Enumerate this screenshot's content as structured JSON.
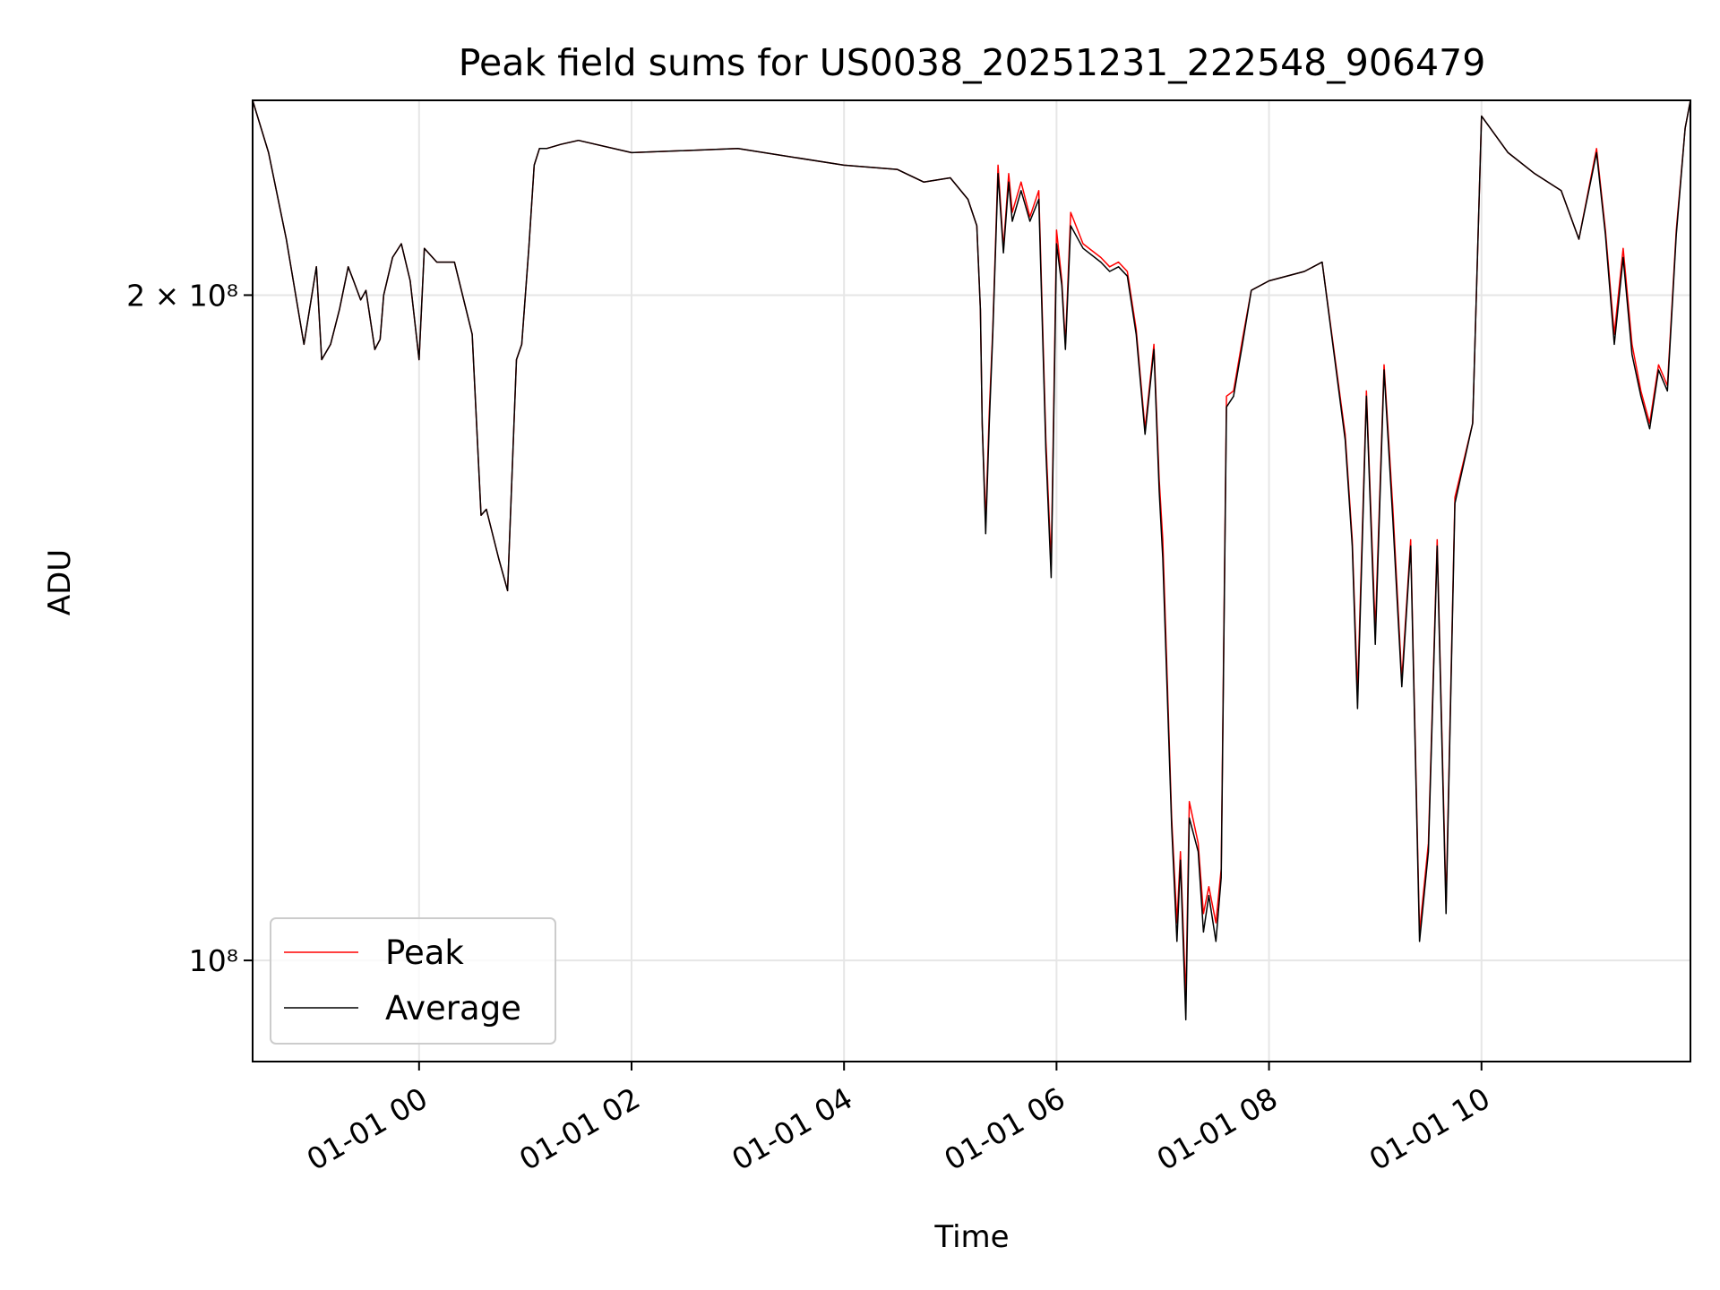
{
  "chart_data": {
    "type": "line",
    "title": "Peak field sums for US0038_20251231_222548_906479",
    "xlabel": "Time",
    "ylabel": "ADU",
    "yscale": "log",
    "x_range": [
      "2025-12-31T22:26:00",
      "2026-01-01T11:58:00"
    ],
    "ylim": [
      90000000,
      245000000
    ],
    "x_ticks": [
      {
        "value": "2026-01-01T00:00",
        "label": "01-01 00"
      },
      {
        "value": "2026-01-01T02:00",
        "label": "01-01 02"
      },
      {
        "value": "2026-01-01T04:00",
        "label": "01-01 04"
      },
      {
        "value": "2026-01-01T06:00",
        "label": "01-01 06"
      },
      {
        "value": "2026-01-01T08:00",
        "label": "01-01 08"
      },
      {
        "value": "2026-01-01T10:00",
        "label": "01-01 10"
      }
    ],
    "y_ticks": [
      {
        "value": 200000000,
        "label": "2 × 10⁸"
      },
      {
        "value": 100000000,
        "label": "10⁸"
      }
    ],
    "grid": true,
    "legend_position": "lower-left",
    "series": [
      {
        "name": "Peak",
        "color": "#ff0000",
        "x": [
          "2025-12-31T22:26",
          "2025-12-31T22:35",
          "2025-12-31T22:45",
          "2025-12-31T22:55",
          "2025-12-31T23:02",
          "2025-12-31T23:05",
          "2025-12-31T23:10",
          "2025-12-31T23:15",
          "2025-12-31T23:20",
          "2025-12-31T23:23",
          "2025-12-31T23:27",
          "2025-12-31T23:30",
          "2025-12-31T23:35",
          "2025-12-31T23:38",
          "2025-12-31T23:40",
          "2025-12-31T23:45",
          "2025-12-31T23:50",
          "2025-12-31T23:55",
          "2026-01-01T00:00",
          "2026-01-01T00:03",
          "2026-01-01T00:10",
          "2026-01-01T00:20",
          "2026-01-01T00:30",
          "2026-01-01T00:35",
          "2026-01-01T00:38",
          "2026-01-01T00:45",
          "2026-01-01T00:50",
          "2026-01-01T00:55",
          "2026-01-01T00:58",
          "2026-01-01T01:02",
          "2026-01-01T01:05",
          "2026-01-01T01:08",
          "2026-01-01T01:12",
          "2026-01-01T01:20",
          "2026-01-01T01:30",
          "2026-01-01T02:00",
          "2026-01-01T03:00",
          "2026-01-01T04:00",
          "2026-01-01T04:30",
          "2026-01-01T04:45",
          "2026-01-01T05:00",
          "2026-01-01T05:10",
          "2026-01-01T05:15",
          "2026-01-01T05:17",
          "2026-01-01T05:18",
          "2026-01-01T05:20",
          "2026-01-01T05:22",
          "2026-01-01T05:24",
          "2026-01-01T05:27",
          "2026-01-01T05:30",
          "2026-01-01T05:33",
          "2026-01-01T05:35",
          "2026-01-01T05:40",
          "2026-01-01T05:45",
          "2026-01-01T05:50",
          "2026-01-01T05:54",
          "2026-01-01T05:57",
          "2026-01-01T06:00",
          "2026-01-01T06:03",
          "2026-01-01T06:05",
          "2026-01-01T06:08",
          "2026-01-01T06:15",
          "2026-01-01T06:25",
          "2026-01-01T06:30",
          "2026-01-01T06:35",
          "2026-01-01T06:40",
          "2026-01-01T06:45",
          "2026-01-01T06:50",
          "2026-01-01T06:55",
          "2026-01-01T06:58",
          "2026-01-01T07:00",
          "2026-01-01T07:05",
          "2026-01-01T07:08",
          "2026-01-01T07:10",
          "2026-01-01T07:13",
          "2026-01-01T07:15",
          "2026-01-01T07:20",
          "2026-01-01T07:23",
          "2026-01-01T07:26",
          "2026-01-01T07:30",
          "2026-01-01T07:33",
          "2026-01-01T07:36",
          "2026-01-01T07:40",
          "2026-01-01T07:45",
          "2026-01-01T07:50",
          "2026-01-01T08:00",
          "2026-01-01T08:20",
          "2026-01-01T08:30",
          "2026-01-01T08:43",
          "2026-01-01T08:47",
          "2026-01-01T08:50",
          "2026-01-01T08:55",
          "2026-01-01T09:00",
          "2026-01-01T09:05",
          "2026-01-01T09:10",
          "2026-01-01T09:15",
          "2026-01-01T09:20",
          "2026-01-01T09:25",
          "2026-01-01T09:30",
          "2026-01-01T09:35",
          "2026-01-01T09:40",
          "2026-01-01T09:45",
          "2026-01-01T09:55",
          "2026-01-01T10:00",
          "2026-01-01T10:15",
          "2026-01-01T10:30",
          "2026-01-01T10:45",
          "2026-01-01T10:55",
          "2026-01-01T11:05",
          "2026-01-01T11:10",
          "2026-01-01T11:15",
          "2026-01-01T11:20",
          "2026-01-01T11:25",
          "2026-01-01T11:30",
          "2026-01-01T11:35",
          "2026-01-01T11:40",
          "2026-01-01T11:45",
          "2026-01-01T11:50",
          "2026-01-01T11:55",
          "2026-01-01T11:58"
        ],
        "y": [
          245000000,
          232000000,
          212000000,
          190000000,
          206000000,
          187000000,
          190000000,
          197000000,
          206000000,
          203000000,
          199000000,
          201000000,
          189000000,
          191000000,
          200000000,
          208000000,
          211000000,
          203000000,
          187000000,
          210000000,
          207000000,
          207000000,
          192000000,
          159000000,
          160000000,
          152000000,
          147000000,
          187000000,
          190000000,
          210000000,
          229000000,
          233000000,
          233000000,
          234000000,
          235000000,
          232000000,
          233000000,
          229000000,
          228000000,
          225000000,
          226000000,
          221000000,
          215000000,
          197000000,
          175000000,
          158000000,
          177000000,
          193000000,
          229000000,
          210000000,
          227000000,
          218000000,
          225000000,
          217000000,
          223000000,
          172000000,
          151000000,
          214000000,
          203000000,
          190000000,
          218000000,
          211000000,
          208000000,
          206000000,
          207000000,
          205000000,
          193000000,
          174000000,
          190000000,
          165000000,
          155000000,
          116000000,
          104000000,
          112000000,
          96000000,
          118000000,
          113000000,
          105000000,
          108000000,
          104000000,
          110000000,
          180000000,
          181000000,
          191000000,
          201000000,
          203000000,
          205000000,
          207000000,
          173000000,
          155000000,
          132000000,
          181000000,
          141000000,
          186000000,
          160000000,
          134000000,
          155000000,
          103000000,
          113000000,
          155000000,
          106000000,
          162000000,
          175000000,
          241000000,
          232000000,
          227000000,
          223000000,
          212000000,
          233000000,
          214000000,
          192000000,
          210000000,
          190000000,
          181000000,
          175000000,
          186000000,
          182000000,
          214000000,
          238000000,
          245000000
        ]
      },
      {
        "name": "Average",
        "color": "#000000",
        "x": [
          "2025-12-31T22:26",
          "2025-12-31T22:35",
          "2025-12-31T22:45",
          "2025-12-31T22:55",
          "2025-12-31T23:02",
          "2025-12-31T23:05",
          "2025-12-31T23:10",
          "2025-12-31T23:15",
          "2025-12-31T23:20",
          "2025-12-31T23:23",
          "2025-12-31T23:27",
          "2025-12-31T23:30",
          "2025-12-31T23:35",
          "2025-12-31T23:38",
          "2025-12-31T23:40",
          "2025-12-31T23:45",
          "2025-12-31T23:50",
          "2025-12-31T23:55",
          "2026-01-01T00:00",
          "2026-01-01T00:03",
          "2026-01-01T00:10",
          "2026-01-01T00:20",
          "2026-01-01T00:30",
          "2026-01-01T00:35",
          "2026-01-01T00:38",
          "2026-01-01T00:45",
          "2026-01-01T00:50",
          "2026-01-01T00:55",
          "2026-01-01T00:58",
          "2026-01-01T01:02",
          "2026-01-01T01:05",
          "2026-01-01T01:08",
          "2026-01-01T01:12",
          "2026-01-01T01:20",
          "2026-01-01T01:30",
          "2026-01-01T02:00",
          "2026-01-01T03:00",
          "2026-01-01T04:00",
          "2026-01-01T04:30",
          "2026-01-01T04:45",
          "2026-01-01T05:00",
          "2026-01-01T05:10",
          "2026-01-01T05:15",
          "2026-01-01T05:17",
          "2026-01-01T05:18",
          "2026-01-01T05:20",
          "2026-01-01T05:22",
          "2026-01-01T05:24",
          "2026-01-01T05:27",
          "2026-01-01T05:30",
          "2026-01-01T05:33",
          "2026-01-01T05:35",
          "2026-01-01T05:40",
          "2026-01-01T05:45",
          "2026-01-01T05:50",
          "2026-01-01T05:54",
          "2026-01-01T05:57",
          "2026-01-01T06:00",
          "2026-01-01T06:03",
          "2026-01-01T06:05",
          "2026-01-01T06:08",
          "2026-01-01T06:15",
          "2026-01-01T06:25",
          "2026-01-01T06:30",
          "2026-01-01T06:35",
          "2026-01-01T06:40",
          "2026-01-01T06:45",
          "2026-01-01T06:50",
          "2026-01-01T06:55",
          "2026-01-01T06:58",
          "2026-01-01T07:00",
          "2026-01-01T07:05",
          "2026-01-01T07:08",
          "2026-01-01T07:10",
          "2026-01-01T07:13",
          "2026-01-01T07:15",
          "2026-01-01T07:20",
          "2026-01-01T07:23",
          "2026-01-01T07:26",
          "2026-01-01T07:30",
          "2026-01-01T07:33",
          "2026-01-01T07:36",
          "2026-01-01T07:40",
          "2026-01-01T07:45",
          "2026-01-01T07:50",
          "2026-01-01T08:00",
          "2026-01-01T08:20",
          "2026-01-01T08:30",
          "2026-01-01T08:43",
          "2026-01-01T08:47",
          "2026-01-01T08:50",
          "2026-01-01T08:55",
          "2026-01-01T09:00",
          "2026-01-01T09:05",
          "2026-01-01T09:10",
          "2026-01-01T09:15",
          "2026-01-01T09:20",
          "2026-01-01T09:25",
          "2026-01-01T09:30",
          "2026-01-01T09:35",
          "2026-01-01T09:40",
          "2026-01-01T09:45",
          "2026-01-01T09:55",
          "2026-01-01T10:00",
          "2026-01-01T10:15",
          "2026-01-01T10:30",
          "2026-01-01T10:45",
          "2026-01-01T10:55",
          "2026-01-01T11:05",
          "2026-01-01T11:10",
          "2026-01-01T11:15",
          "2026-01-01T11:20",
          "2026-01-01T11:25",
          "2026-01-01T11:30",
          "2026-01-01T11:35",
          "2026-01-01T11:40",
          "2026-01-01T11:45",
          "2026-01-01T11:50",
          "2026-01-01T11:55",
          "2026-01-01T11:58"
        ],
        "y": [
          245000000,
          232000000,
          212000000,
          190000000,
          206000000,
          187000000,
          190000000,
          197000000,
          206000000,
          203000000,
          199000000,
          201000000,
          189000000,
          191000000,
          200000000,
          208000000,
          211000000,
          203000000,
          187000000,
          210000000,
          207000000,
          207000000,
          192000000,
          159000000,
          160000000,
          152000000,
          147000000,
          187000000,
          190000000,
          210000000,
          229000000,
          233000000,
          233000000,
          234000000,
          235000000,
          232000000,
          233000000,
          229000000,
          228000000,
          225000000,
          226000000,
          221000000,
          215000000,
          197000000,
          175000000,
          156000000,
          175000000,
          192000000,
          227000000,
          209000000,
          225000000,
          216000000,
          223000000,
          216000000,
          221000000,
          170000000,
          149000000,
          211000000,
          202000000,
          189000000,
          215000000,
          210000000,
          207000000,
          205000000,
          206000000,
          204000000,
          192000000,
          173000000,
          189000000,
          163000000,
          152000000,
          115000000,
          102000000,
          111000000,
          94000000,
          116000000,
          112000000,
          103000000,
          107000000,
          102000000,
          109000000,
          178000000,
          180000000,
          190000000,
          201000000,
          203000000,
          205000000,
          207000000,
          172000000,
          154000000,
          130000000,
          180000000,
          139000000,
          185000000,
          158000000,
          133000000,
          154000000,
          102000000,
          112000000,
          154000000,
          105000000,
          161000000,
          175000000,
          241000000,
          232000000,
          227000000,
          223000000,
          212000000,
          232000000,
          213000000,
          190000000,
          208000000,
          188000000,
          180000000,
          174000000,
          185000000,
          181000000,
          213000000,
          238000000,
          245000000
        ]
      }
    ]
  }
}
